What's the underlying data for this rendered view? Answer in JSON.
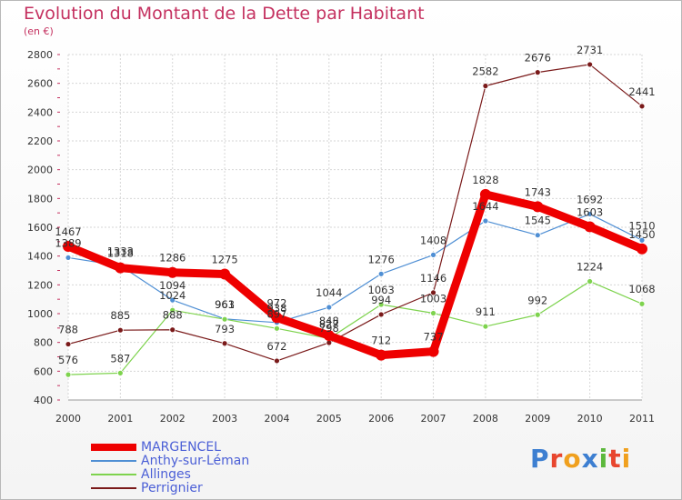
{
  "header": {
    "title": "Evolution du Montant de la Dette par Habitant",
    "unit": "(en €)"
  },
  "logo": {
    "letters": [
      "P",
      "r",
      "o",
      "x",
      "i",
      "t",
      "i"
    ],
    "colors": [
      "#3d7fd1",
      "#e8462e",
      "#f0a01e",
      "#3d7fd1",
      "#5cb83c",
      "#e8462e",
      "#f0a01e"
    ]
  },
  "chart_data": {
    "type": "line",
    "x": [
      "2000",
      "2001",
      "2002",
      "2003",
      "2004",
      "2005",
      "2006",
      "2007",
      "2008",
      "2009",
      "2010",
      "2011"
    ],
    "ylim": [
      400,
      2800
    ],
    "yticks": [
      400,
      600,
      800,
      1000,
      1200,
      1400,
      1600,
      1800,
      2000,
      2200,
      2400,
      2600,
      2800
    ],
    "grid": true,
    "legend_position": "bottom-left",
    "series": [
      {
        "name": "MARGENCEL",
        "color": "#ee0000",
        "values": [
          1467,
          1318,
          1286,
          1275,
          972,
          848,
          712,
          737,
          1828,
          1743,
          1603,
          1450
        ],
        "labels": [
          "1467",
          "1318",
          "1286",
          "1275",
          "972",
          "848",
          "712",
          "737",
          "1828",
          "1743",
          "1603",
          "1450"
        ]
      },
      {
        "name": "Anthy-sur-Léman",
        "color": "#4f8fd4",
        "values": [
          1389,
          1333,
          1094,
          963,
          938,
          1044,
          1276,
          1408,
          1644,
          1545,
          1692,
          1510
        ],
        "labels": [
          "1389",
          "1333",
          "1094",
          "963",
          "938",
          "1044",
          "1276",
          "1408",
          "1644",
          "1545",
          "1692",
          "1510"
        ]
      },
      {
        "name": "Allinges",
        "color": "#7ed34e",
        "values": [
          576,
          587,
          1024,
          961,
          897,
          827,
          1063,
          1003,
          911,
          992,
          1224,
          1068
        ],
        "labels": [
          "576",
          "587",
          "1024",
          "961",
          "897",
          "827",
          "1063",
          "1003",
          "911",
          "992",
          "1224",
          "1068"
        ]
      },
      {
        "name": "Perrignier",
        "color": "#7a1a1a",
        "values": [
          788,
          885,
          888,
          793,
          672,
          798,
          994,
          1146,
          2582,
          2676,
          2731,
          2441
        ],
        "labels": [
          "788",
          "885",
          "888",
          "793",
          "672",
          "798",
          "994",
          "1146",
          "2582",
          "2676",
          "2731",
          "2441"
        ]
      }
    ]
  }
}
